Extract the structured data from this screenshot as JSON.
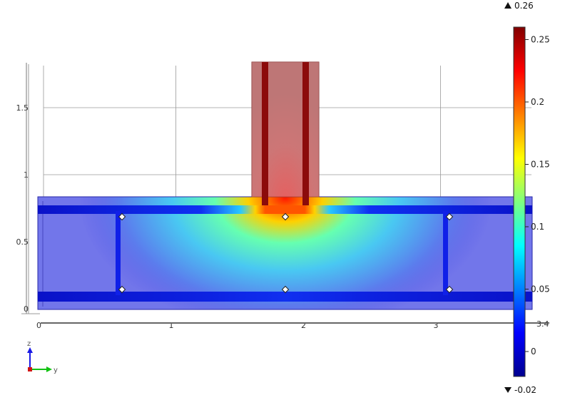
{
  "plot": {
    "y_ticks": [
      {
        "label": "0",
        "value": 0
      },
      {
        "label": "1",
        "value": 1
      },
      {
        "label": "2",
        "value": 2
      },
      {
        "label": "3",
        "value": 3
      }
    ],
    "z_ticks": [
      {
        "label": "0",
        "value": 0
      },
      {
        "label": "0.5",
        "value": 0.5
      },
      {
        "label": "1",
        "value": 1
      },
      {
        "label": "1.5",
        "value": 1.5
      }
    ],
    "right_edge_label": "3.4"
  },
  "triad": {
    "z_label": "z",
    "y_label": "y",
    "colors": {
      "z": "#1a1ae6",
      "y": "#12c212",
      "x": "#d21414"
    }
  },
  "colorbar": {
    "max_label": "0.26",
    "min_label": "-0.02",
    "range": [
      -0.02,
      0.26
    ],
    "ticks": [
      {
        "label": "0.25",
        "value": 0.25
      },
      {
        "label": "0.2",
        "value": 0.2
      },
      {
        "label": "0.15",
        "value": 0.15
      },
      {
        "label": "0.1",
        "value": 0.1
      },
      {
        "label": "0.05",
        "value": 0.05
      },
      {
        "label": "0",
        "value": 0
      }
    ],
    "colormap": [
      "#00008f",
      "#0000ff",
      "#00ffff",
      "#ffff00",
      "#ff0000",
      "#800000"
    ]
  }
}
